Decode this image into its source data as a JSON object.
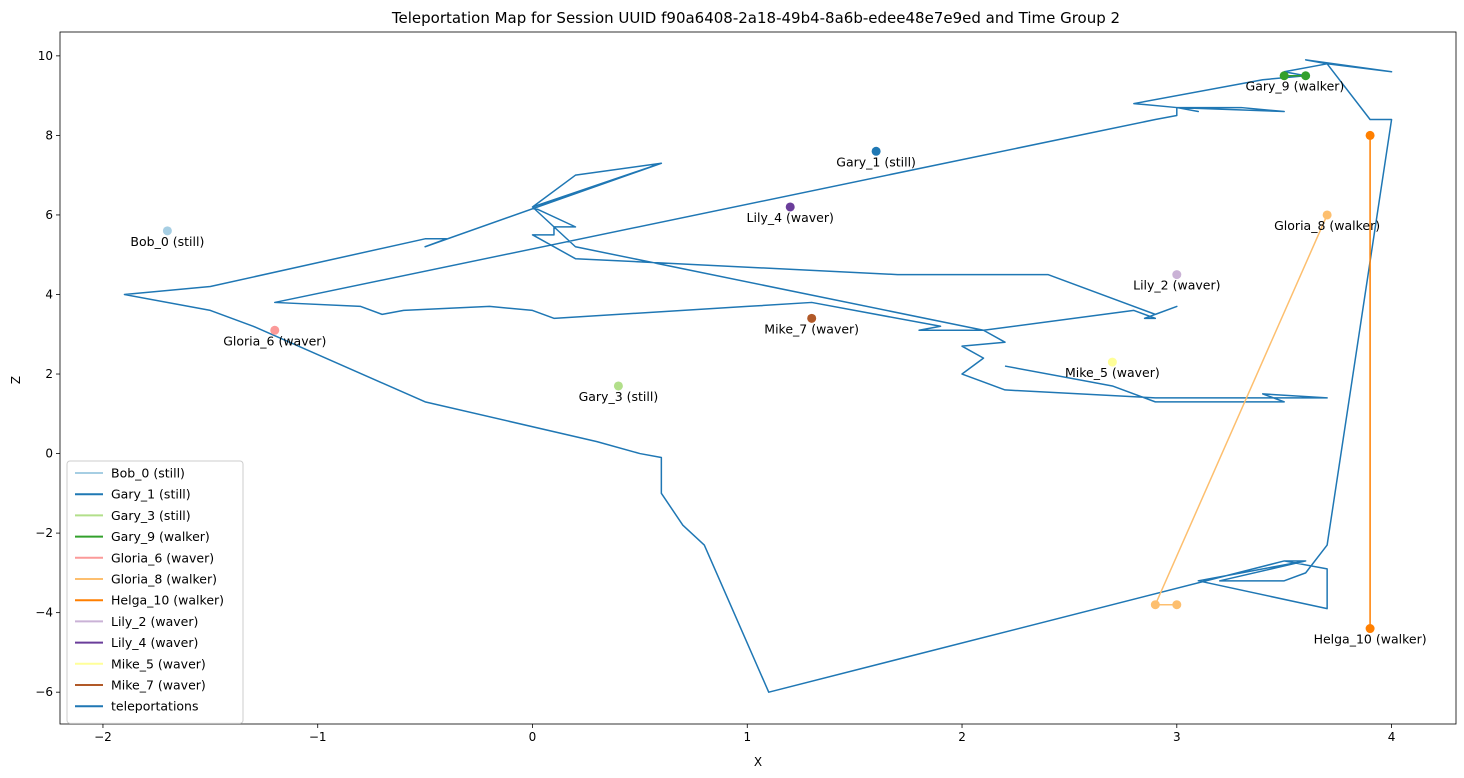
{
  "chart_data": {
    "type": "line",
    "title": "Teleportation Map for Session UUID f90a6408-2a18-49b4-8a6b-edee48e7e9ed and Time Group 2",
    "xlabel": "X",
    "ylabel": "Z",
    "xlim": [
      -2.2,
      4.3
    ],
    "ylim": [
      -6.8,
      10.6
    ],
    "xticks": [
      -2,
      -1,
      0,
      1,
      2,
      3,
      4
    ],
    "yticks": [
      -6,
      -4,
      -2,
      0,
      2,
      4,
      6,
      8,
      10
    ],
    "grid": false,
    "legend_position": "lower-left",
    "series": [
      {
        "name": "Bob_0 (still)",
        "color": "#a6cee3",
        "points": [
          [
            -1.7,
            5.6
          ]
        ]
      },
      {
        "name": "Gary_1 (still)",
        "color": "#1f78b4",
        "points": [
          [
            1.6,
            7.6
          ]
        ]
      },
      {
        "name": "Gary_3 (still)",
        "color": "#b2df8a",
        "points": [
          [
            0.4,
            1.7
          ]
        ]
      },
      {
        "name": "Gary_9 (walker)",
        "color": "#33a02c",
        "points": [
          [
            3.5,
            9.5
          ],
          [
            3.6,
            9.5
          ]
        ]
      },
      {
        "name": "Gloria_6 (waver)",
        "color": "#fb9a99",
        "points": [
          [
            -1.2,
            3.1
          ]
        ]
      },
      {
        "name": "Gloria_8 (walker)",
        "color": "#fdbf6f",
        "points": [
          [
            3.0,
            -3.8
          ],
          [
            2.9,
            -3.8
          ],
          [
            3.7,
            6.0
          ]
        ]
      },
      {
        "name": "Helga_10 (walker)",
        "color": "#ff7f00",
        "points": [
          [
            3.9,
            -4.4
          ],
          [
            3.9,
            8.0
          ]
        ]
      },
      {
        "name": "Lily_2 (waver)",
        "color": "#cab2d6",
        "points": [
          [
            3.0,
            4.5
          ]
        ]
      },
      {
        "name": "Lily_4 (waver)",
        "color": "#6a3d9a",
        "points": [
          [
            1.2,
            6.2
          ]
        ]
      },
      {
        "name": "Mike_5 (waver)",
        "color": "#ffff99",
        "points": [
          [
            2.7,
            2.3
          ]
        ]
      },
      {
        "name": "Mike_7 (waver)",
        "color": "#b15928",
        "points": [
          [
            1.3,
            3.4
          ]
        ]
      }
    ],
    "annotations": [
      {
        "text": "Bob_0 (still)",
        "x": -1.7,
        "y": 5.6
      },
      {
        "text": "Gary_1 (still)",
        "x": 1.6,
        "y": 7.6
      },
      {
        "text": "Gary_3 (still)",
        "x": 0.4,
        "y": 1.7
      },
      {
        "text": "Gary_9 (walker)",
        "x": 3.55,
        "y": 9.5
      },
      {
        "text": "Gloria_6 (waver)",
        "x": -1.2,
        "y": 3.1
      },
      {
        "text": "Gloria_8 (walker)",
        "x": 3.7,
        "y": 6.0
      },
      {
        "text": "Helga_10 (walker)",
        "x": 3.9,
        "y": -4.4
      },
      {
        "text": "Lily_2 (waver)",
        "x": 3.0,
        "y": 4.5
      },
      {
        "text": "Lily_4 (waver)",
        "x": 1.2,
        "y": 6.2
      },
      {
        "text": "Mike_5 (waver)",
        "x": 2.7,
        "y": 2.3
      },
      {
        "text": "Mike_7 (waver)",
        "x": 1.3,
        "y": 3.4
      }
    ],
    "teleportations": {
      "name": "teleportations",
      "color": "#1f77b4",
      "points": [
        [
          0.6,
          7.3
        ],
        [
          0.0,
          6.2
        ],
        [
          0.2,
          5.7
        ],
        [
          0.1,
          5.7
        ],
        [
          0.1,
          5.5
        ],
        [
          0.0,
          5.5
        ],
        [
          0.2,
          4.9
        ],
        [
          1.7,
          4.5
        ],
        [
          2.4,
          4.5
        ],
        [
          2.9,
          3.5
        ],
        [
          3.0,
          3.7
        ],
        [
          2.85,
          3.4
        ],
        [
          2.9,
          3.4
        ],
        [
          2.8,
          3.6
        ],
        [
          2.1,
          3.1
        ],
        [
          1.8,
          3.1
        ],
        [
          1.9,
          3.2
        ],
        [
          1.3,
          3.8
        ],
        [
          1.0,
          3.7
        ],
        [
          0.1,
          3.4
        ],
        [
          0.0,
          3.6
        ],
        [
          -0.2,
          3.7
        ],
        [
          -0.6,
          3.6
        ],
        [
          -0.7,
          3.5
        ],
        [
          -0.8,
          3.7
        ],
        [
          -1.2,
          3.8
        ],
        [
          2.9,
          8.4
        ],
        [
          3.0,
          8.5
        ],
        [
          3.0,
          8.7
        ],
        [
          3.1,
          8.6
        ],
        [
          3.0,
          8.7
        ],
        [
          3.3,
          8.7
        ],
        [
          3.5,
          8.6
        ],
        [
          3.0,
          8.7
        ],
        [
          2.8,
          8.8
        ],
        [
          3.4,
          9.4
        ],
        [
          3.6,
          9.5
        ],
        [
          3.5,
          9.6
        ],
        [
          3.7,
          9.8
        ],
        [
          3.6,
          9.9
        ],
        [
          4.0,
          9.6
        ],
        [
          3.7,
          9.8
        ],
        [
          3.9,
          8.4
        ],
        [
          4.0,
          8.4
        ],
        [
          3.7,
          -2.3
        ],
        [
          3.6,
          -3.0
        ],
        [
          3.5,
          -3.2
        ],
        [
          3.4,
          -3.2
        ],
        [
          3.2,
          -3.2
        ],
        [
          3.6,
          -2.7
        ],
        [
          3.5,
          -2.7
        ],
        [
          3.7,
          -2.9
        ],
        [
          3.7,
          -3.9
        ],
        [
          3.1,
          -3.2
        ],
        [
          3.6,
          -2.7
        ],
        [
          3.5,
          -2.7
        ],
        [
          1.1,
          -6.0
        ],
        [
          0.8,
          -2.3
        ],
        [
          0.7,
          -1.8
        ],
        [
          0.6,
          -1.0
        ],
        [
          0.6,
          -0.1
        ],
        [
          0.5,
          0.0
        ],
        [
          0.3,
          0.3
        ],
        [
          -0.5,
          1.3
        ],
        [
          -1.3,
          3.2
        ],
        [
          -1.5,
          3.6
        ],
        [
          -1.9,
          4.0
        ],
        [
          -1.5,
          4.2
        ],
        [
          -0.5,
          5.4
        ],
        [
          -0.4,
          5.4
        ],
        [
          -0.5,
          5.2
        ],
        [
          0.6,
          7.3
        ],
        [
          0.2,
          7.0
        ],
        [
          0.0,
          6.2
        ],
        [
          0.2,
          5.2
        ],
        [
          2.1,
          3.1
        ],
        [
          2.2,
          2.8
        ],
        [
          2.0,
          2.7
        ],
        [
          2.1,
          2.4
        ],
        [
          2.0,
          2.0
        ],
        [
          2.2,
          1.6
        ],
        [
          2.9,
          1.4
        ],
        [
          3.7,
          1.4
        ],
        [
          3.4,
          1.5
        ],
        [
          3.5,
          1.3
        ],
        [
          2.9,
          1.3
        ],
        [
          2.7,
          1.7
        ],
        [
          2.2,
          2.2
        ]
      ]
    }
  }
}
